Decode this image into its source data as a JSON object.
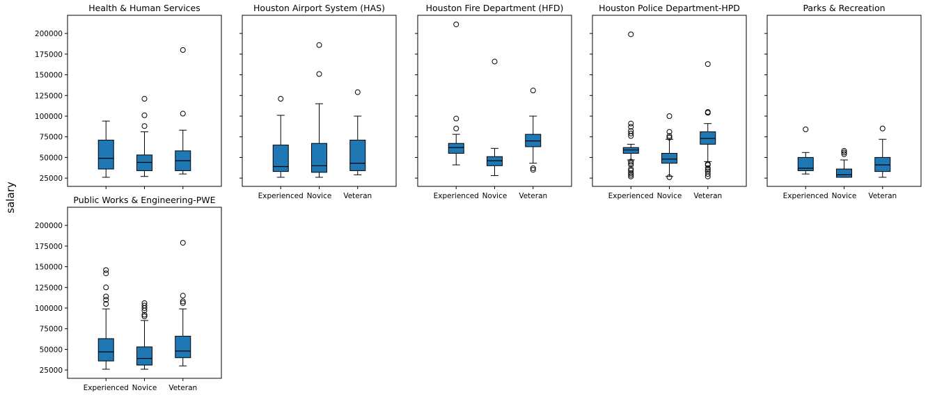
{
  "figure": {
    "ylabel": "salary"
  },
  "chart_data": {
    "type": "boxplot",
    "shared_y": true,
    "ylim": [
      15000,
      222000
    ],
    "yticks": [
      25000,
      50000,
      75000,
      100000,
      125000,
      150000,
      175000,
      200000
    ],
    "categories": [
      "Experienced",
      "Novice",
      "Veteran"
    ],
    "box_color": "#1f77b4",
    "panels": [
      {
        "title": "Health & Human Services",
        "show_xticks": false,
        "show_yticks": true,
        "boxes": [
          {
            "category": "Experienced",
            "whislo": 26000,
            "q1": 36000,
            "med": 49000,
            "q3": 71000,
            "whishi": 94000,
            "fliers": []
          },
          {
            "category": "Novice",
            "whislo": 27000,
            "q1": 34000,
            "med": 44000,
            "q3": 53000,
            "whishi": 81000,
            "fliers": [
              88000,
              101000,
              121000
            ]
          },
          {
            "category": "Veteran",
            "whislo": 30000,
            "q1": 34000,
            "med": 46000,
            "q3": 58000,
            "whishi": 83000,
            "fliers": [
              103000,
              180000
            ]
          }
        ]
      },
      {
        "title": "Houston Airport System (HAS)",
        "show_xticks": true,
        "show_yticks": false,
        "boxes": [
          {
            "category": "Experienced",
            "whislo": 26000,
            "q1": 33000,
            "med": 39000,
            "q3": 65000,
            "whishi": 101000,
            "fliers": [
              121000
            ]
          },
          {
            "category": "Novice",
            "whislo": 26000,
            "q1": 32000,
            "med": 40000,
            "q3": 67000,
            "whishi": 115000,
            "fliers": [
              151000,
              186000
            ]
          },
          {
            "category": "Veteran",
            "whislo": 29000,
            "q1": 34000,
            "med": 43000,
            "q3": 71000,
            "whishi": 100000,
            "fliers": [
              129000
            ]
          }
        ]
      },
      {
        "title": "Houston Fire Department (HFD)",
        "show_xticks": true,
        "show_yticks": false,
        "boxes": [
          {
            "category": "Experienced",
            "whislo": 41000,
            "q1": 55000,
            "med": 62000,
            "q3": 67000,
            "whishi": 78000,
            "fliers": [
              85000,
              97000,
              211000
            ]
          },
          {
            "category": "Novice",
            "whislo": 28000,
            "q1": 40000,
            "med": 46000,
            "q3": 51000,
            "whishi": 61000,
            "fliers": [
              166000
            ]
          },
          {
            "category": "Veteran",
            "whislo": 43000,
            "q1": 63000,
            "med": 70000,
            "q3": 78000,
            "whishi": 100000,
            "fliers": [
              35000,
              37000,
              131000
            ]
          }
        ]
      },
      {
        "title": "Houston Police Department-HPD",
        "show_xticks": true,
        "show_yticks": false,
        "boxes": [
          {
            "category": "Experienced",
            "whislo": 47000,
            "q1": 55000,
            "med": 59000,
            "q3": 62000,
            "whishi": 66000,
            "fliers": [
              27000,
              29000,
              31000,
              34000,
              36000,
              41000,
              43000,
              45000,
              76000,
              79000,
              82000,
              87000,
              91000,
              199000
            ]
          },
          {
            "category": "Novice",
            "whislo": 27000,
            "q1": 43000,
            "med": 48000,
            "q3": 55000,
            "whishi": 72000,
            "fliers": [
              26000,
              74000,
              76000,
              81000,
              100000
            ]
          },
          {
            "category": "Veteran",
            "whislo": 45000,
            "q1": 66000,
            "med": 73000,
            "q3": 81000,
            "whishi": 91000,
            "fliers": [
              27000,
              30000,
              33000,
              35000,
              37000,
              41000,
              42000,
              104000,
              105000,
              163000
            ]
          }
        ]
      },
      {
        "title": "Parks & Recreation",
        "show_xticks": true,
        "show_yticks": false,
        "boxes": [
          {
            "category": "Experienced",
            "whislo": 30000,
            "q1": 34000,
            "med": 37000,
            "q3": 50000,
            "whishi": 56000,
            "fliers": [
              84000
            ]
          },
          {
            "category": "Novice",
            "whislo": 26000,
            "q1": 26000,
            "med": 29000,
            "q3": 36000,
            "whishi": 47000,
            "fliers": [
              54000,
              56000,
              58000
            ]
          },
          {
            "category": "Veteran",
            "whislo": 26000,
            "q1": 33000,
            "med": 41000,
            "q3": 50000,
            "whishi": 72000,
            "fliers": [
              85000
            ]
          }
        ]
      },
      {
        "title": "Public Works & Engineering-PWE",
        "show_xticks": true,
        "show_yticks": true,
        "boxes": [
          {
            "category": "Experienced",
            "whislo": 26000,
            "q1": 36000,
            "med": 47000,
            "q3": 63000,
            "whishi": 99000,
            "fliers": [
              105000,
              110000,
              114000,
              125000,
              142000,
              146000
            ]
          },
          {
            "category": "Novice",
            "whislo": 26000,
            "q1": 31000,
            "med": 39000,
            "q3": 53000,
            "whishi": 85000,
            "fliers": [
              90000,
              92000,
              97000,
              100000,
              103000,
              106000
            ]
          },
          {
            "category": "Veteran",
            "whislo": 30000,
            "q1": 40000,
            "med": 48000,
            "q3": 66000,
            "whishi": 99000,
            "fliers": [
              106000,
              108000,
              115000,
              179000
            ]
          }
        ]
      }
    ]
  }
}
